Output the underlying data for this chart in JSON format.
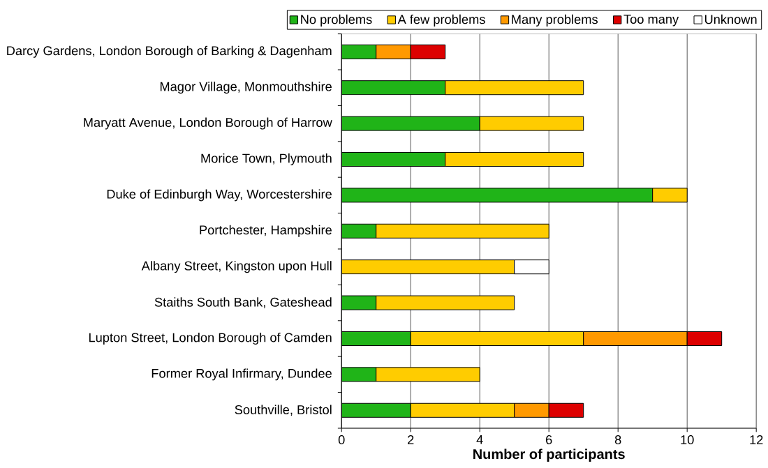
{
  "chart_data": {
    "type": "bar",
    "orientation": "horizontal",
    "stacked": true,
    "categories": [
      "Darcy Gardens, London Borough of Barking & Dagenham",
      "Magor Village, Monmouthshire",
      "Maryatt Avenue, London Borough of Harrow",
      "Morice Town, Plymouth",
      "Duke of Edinburgh Way, Worcestershire",
      "Portchester, Hampshire",
      "Albany Street, Kingston upon Hull",
      "Staiths South Bank, Gateshead",
      "Lupton Street, London Borough of Camden",
      "Former Royal Infirmary, Dundee",
      "Southville, Bristol"
    ],
    "series": [
      {
        "name": "No problems",
        "color": "#20b418",
        "values": [
          1,
          3,
          4,
          3,
          9,
          1,
          0,
          1,
          2,
          1,
          2
        ]
      },
      {
        "name": "A few problems",
        "color": "#ffcc00",
        "values": [
          0,
          4,
          3,
          4,
          1,
          5,
          5,
          4,
          5,
          3,
          3
        ]
      },
      {
        "name": "Many problems",
        "color": "#ff9900",
        "values": [
          1,
          0,
          0,
          0,
          0,
          0,
          0,
          0,
          3,
          0,
          1
        ]
      },
      {
        "name": "Too many",
        "color": "#dd0000",
        "values": [
          1,
          0,
          0,
          0,
          0,
          0,
          0,
          0,
          1,
          0,
          1
        ]
      },
      {
        "name": "Unknown",
        "color": "#ffffff",
        "values": [
          0,
          0,
          0,
          0,
          0,
          0,
          1,
          0,
          0,
          0,
          0
        ]
      }
    ],
    "xlabel": "Number of participants",
    "xlim": [
      0,
      12
    ],
    "xticks": [
      0,
      2,
      4,
      6,
      8,
      10,
      12
    ],
    "grid": "x",
    "legend": "top"
  }
}
